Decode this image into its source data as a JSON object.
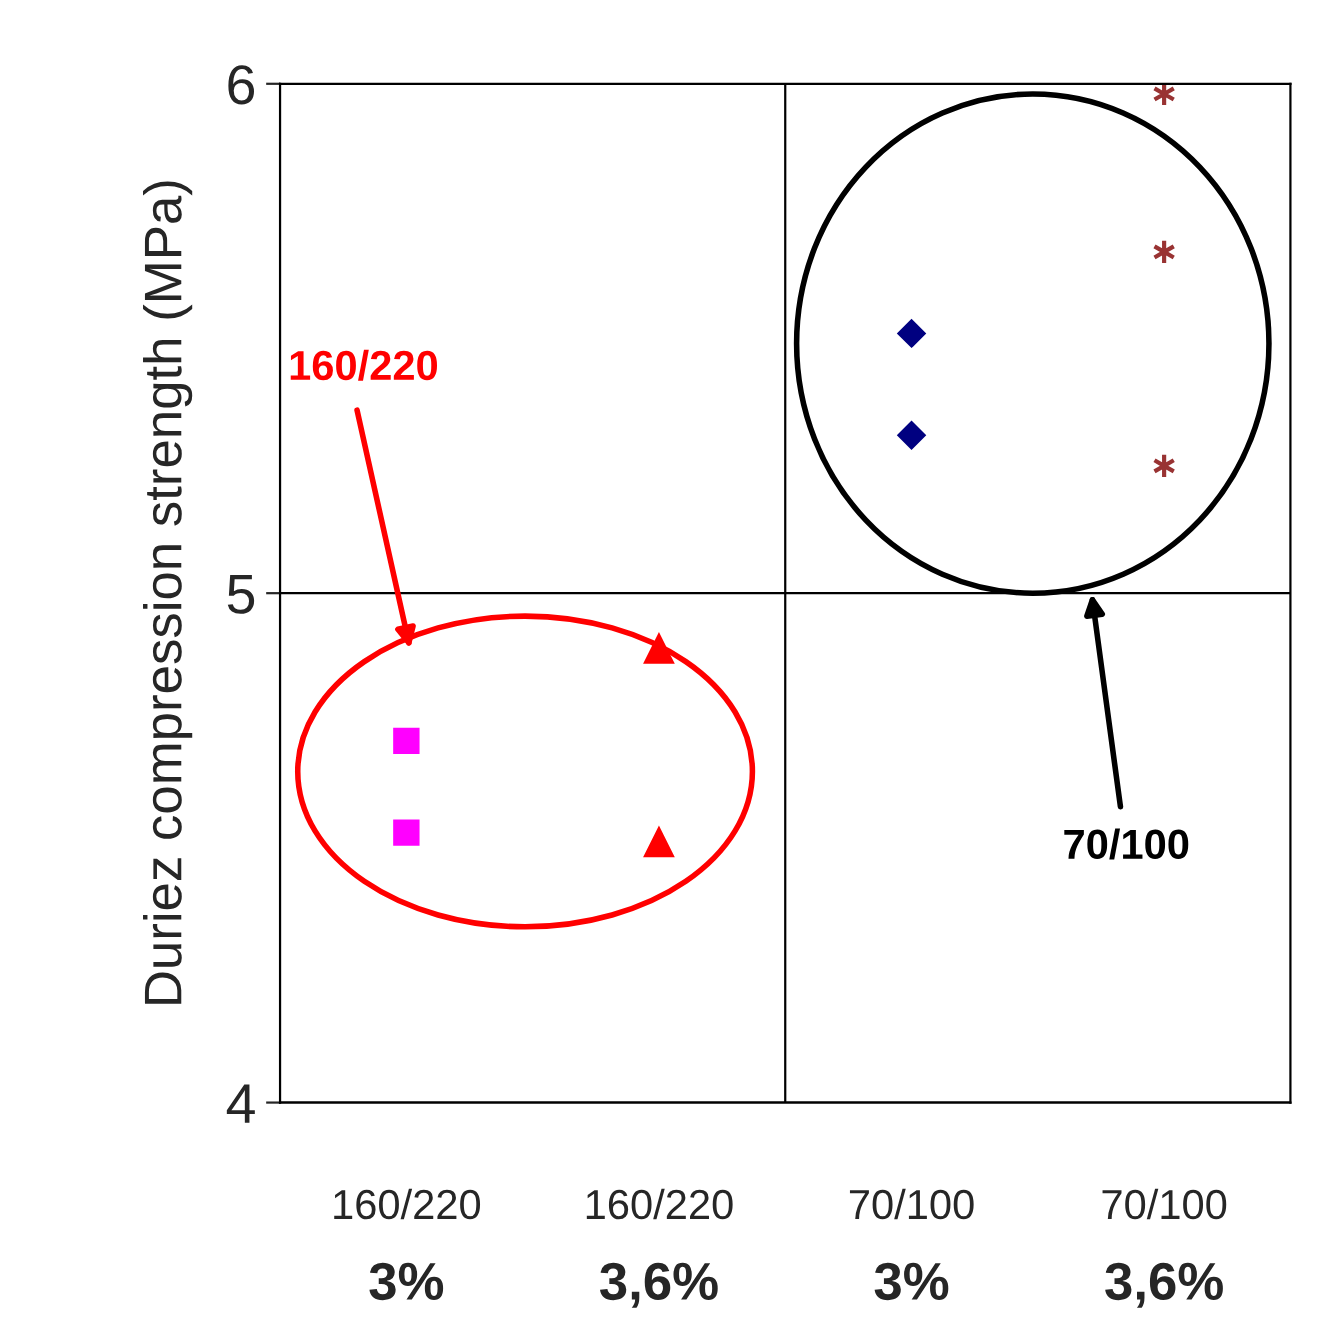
{
  "chart_data": {
    "type": "scatter",
    "ylabel": "Duriez compression strength (MPa)",
    "categories": [
      "160/220\n3%",
      "160/220\n3,6%",
      "70/100\n3%",
      "70/100\n3,6%"
    ],
    "ylim": [
      4,
      6
    ],
    "yticks": [
      4,
      5,
      6
    ],
    "grid": "y",
    "series": [
      {
        "color": "#ff00ff",
        "marker": "square",
        "x": [
          "160/220\n3%",
          "160/220\n3%"
        ],
        "values": [
          4.71,
          4.53
        ]
      },
      {
        "color": "#ff0000",
        "marker": "triangle",
        "x": [
          "160/220\n3,6%",
          "160/220\n3,6%"
        ],
        "values": [
          4.89,
          4.51
        ]
      },
      {
        "color": "#000080",
        "marker": "diamond",
        "x": [
          "70/100\n3%",
          "70/100\n3%"
        ],
        "values": [
          5.51,
          5.31
        ]
      },
      {
        "color": "#993333",
        "marker": "cross",
        "x": [
          "70/100\n3,6%",
          "70/100\n3,6%",
          "70/100\n3,6%"
        ],
        "values": [
          5.98,
          5.67,
          5.25
        ]
      }
    ],
    "annotations": [
      "160/220",
      "70/100"
    ]
  }
}
